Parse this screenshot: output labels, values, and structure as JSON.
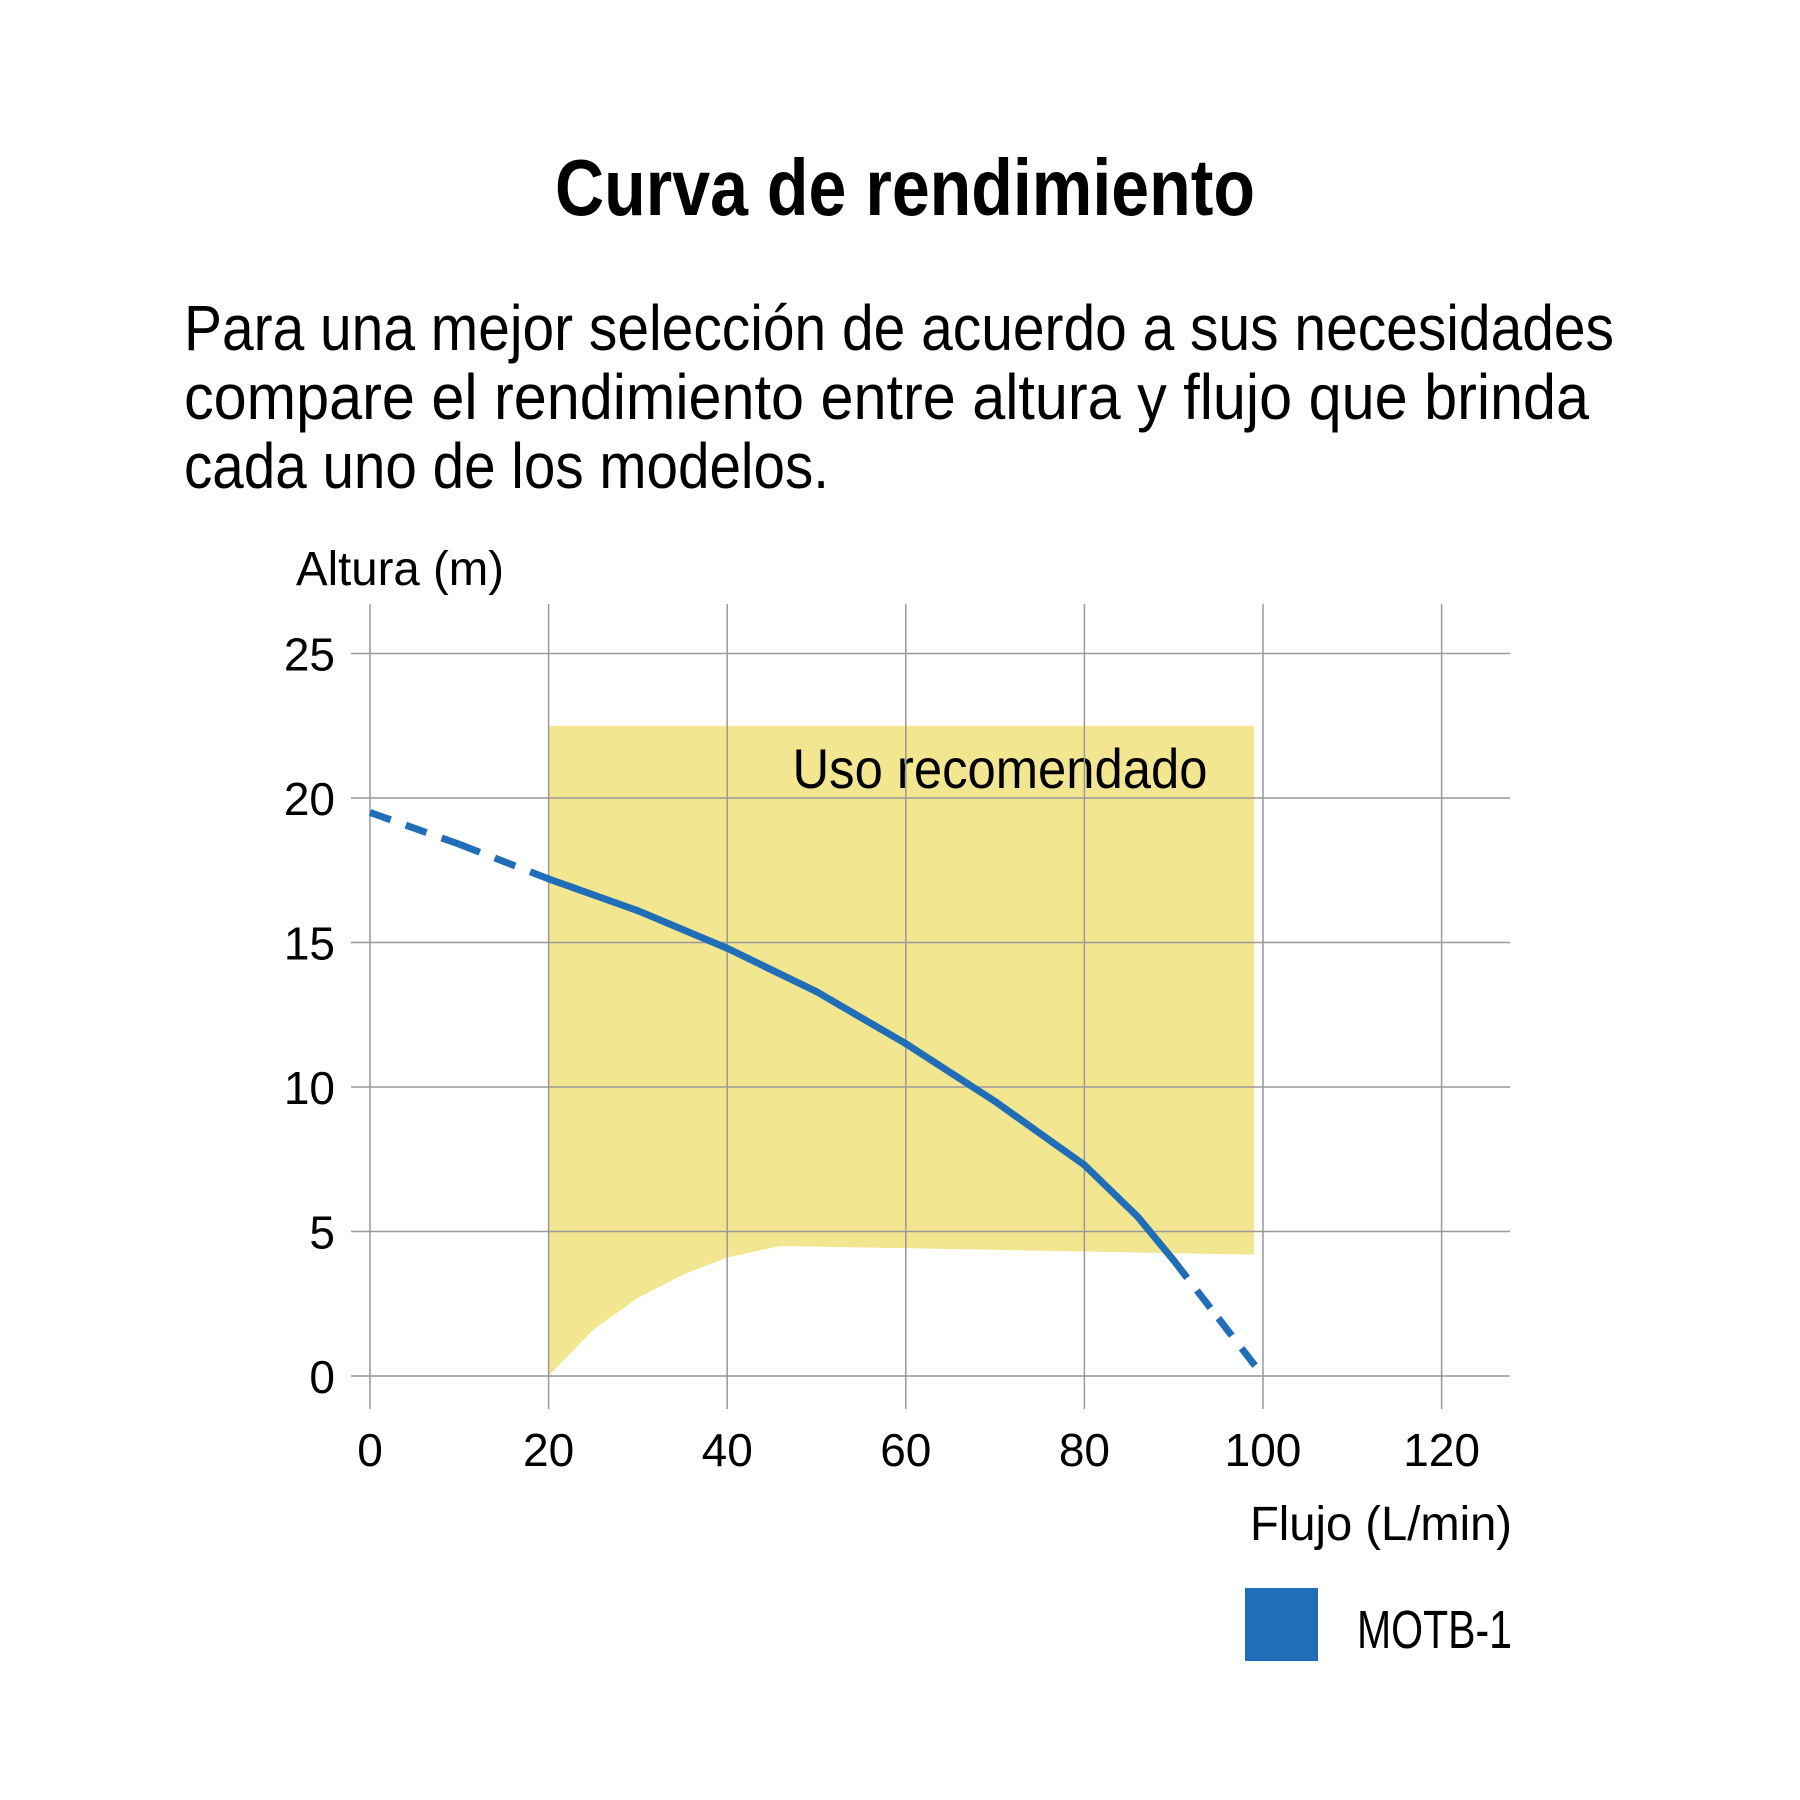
{
  "title": "Curva de rendimiento",
  "description_lines": [
    "Para una mejor selección de acuerdo a sus necesidades",
    "compare el rendimiento entre altura y flujo que brinda",
    "cada uno de los modelos."
  ],
  "chart_data": {
    "type": "line",
    "xlabel": "Flujo (L/min)",
    "ylabel": "Altura (m)",
    "xlim": [
      0,
      127
    ],
    "ylim": [
      -1,
      26
    ],
    "x_ticks": [
      0,
      20,
      40,
      60,
      80,
      100,
      120
    ],
    "y_ticks": [
      0,
      5,
      10,
      15,
      20,
      25
    ],
    "grid": true,
    "legend_placement": "bottom-right",
    "series": [
      {
        "name": "MOTB-1",
        "color": "#1f6eb7",
        "points": [
          [
            0,
            19.5
          ],
          [
            10,
            18.4
          ],
          [
            20,
            17.2
          ],
          [
            30,
            16.1
          ],
          [
            40,
            14.8
          ],
          [
            50,
            13.3
          ],
          [
            60,
            11.5
          ],
          [
            70,
            9.5
          ],
          [
            80,
            7.3
          ],
          [
            86,
            5.5
          ],
          [
            90,
            4.0
          ],
          [
            95,
            2.0
          ],
          [
            100,
            0
          ]
        ],
        "dashed_ranges": [
          [
            0,
            20
          ],
          [
            90,
            100
          ]
        ]
      }
    ],
    "region": {
      "label": "Uso recomendado",
      "color": "#f2e690",
      "x_range": [
        20,
        99
      ],
      "top": 22.5,
      "bottom": [
        [
          20,
          0
        ],
        [
          25,
          1.6
        ],
        [
          30,
          2.7
        ],
        [
          35,
          3.5
        ],
        [
          40,
          4.1
        ],
        [
          46,
          4.5
        ],
        [
          99,
          4.2
        ]
      ]
    }
  }
}
